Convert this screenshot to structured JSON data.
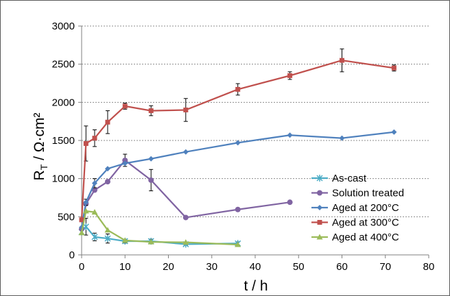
{
  "chart_data": {
    "type": "line",
    "title": "",
    "xlabel": "t / h",
    "ylabel_main": "R",
    "ylabel_sub": "T",
    "ylabel_rest": " / Ω·cm²",
    "xlim": [
      0,
      80
    ],
    "ylim": [
      0,
      3000
    ],
    "x_ticks": [
      "0",
      "10",
      "20",
      "30",
      "40",
      "50",
      "60",
      "70",
      "80"
    ],
    "y_ticks": [
      "0",
      "500",
      "1000",
      "1500",
      "2000",
      "2500",
      "3000"
    ],
    "grid": "horizontal dotted",
    "legend_position": "lower-right",
    "series": [
      {
        "name": "As-cast",
        "color": "#4bacc6",
        "marker": "star",
        "x": [
          0,
          1,
          3,
          6,
          10,
          16,
          24,
          36
        ],
        "y": [
          300,
          370,
          235,
          215,
          180,
          180,
          140,
          150
        ],
        "err": [
          0,
          110,
          50,
          60,
          25,
          25,
          15,
          20
        ]
      },
      {
        "name": "Solution treated",
        "color": "#8064a2",
        "marker": "circle",
        "x": [
          0,
          1,
          3,
          6,
          10,
          16,
          24,
          36,
          48
        ],
        "y": [
          340,
          670,
          850,
          960,
          1240,
          980,
          490,
          595,
          690
        ],
        "err": [
          0,
          0,
          0,
          0,
          80,
          140,
          0,
          0,
          0
        ]
      },
      {
        "name": "Aged at 200°C",
        "color": "#4f81bd",
        "marker": "diamond",
        "x": [
          0,
          1,
          3,
          6,
          10,
          16,
          24,
          36,
          48,
          60,
          72
        ],
        "y": [
          360,
          690,
          940,
          1130,
          1200,
          1260,
          1350,
          1470,
          1570,
          1530,
          1610
        ],
        "err": [
          0,
          40,
          60,
          0,
          0,
          0,
          0,
          0,
          0,
          0,
          0
        ]
      },
      {
        "name": "Aged at 300°C",
        "color": "#c0504d",
        "marker": "square",
        "x": [
          0,
          1,
          3,
          6,
          10,
          16,
          24,
          36,
          48,
          60,
          72
        ],
        "y": [
          460,
          1460,
          1530,
          1740,
          1950,
          1890,
          1900,
          2170,
          2350,
          2550,
          2450
        ],
        "err": [
          0,
          230,
          110,
          150,
          40,
          65,
          150,
          75,
          50,
          150,
          40
        ]
      },
      {
        "name": "Aged at 400°C",
        "color": "#9bbb59",
        "marker": "triangle",
        "x": [
          0,
          1,
          3,
          6,
          10,
          16,
          24,
          36
        ],
        "y": [
          290,
          575,
          560,
          325,
          190,
          170,
          165,
          135
        ],
        "err": [
          0,
          0,
          0,
          0,
          0,
          0,
          0,
          0
        ]
      }
    ]
  }
}
